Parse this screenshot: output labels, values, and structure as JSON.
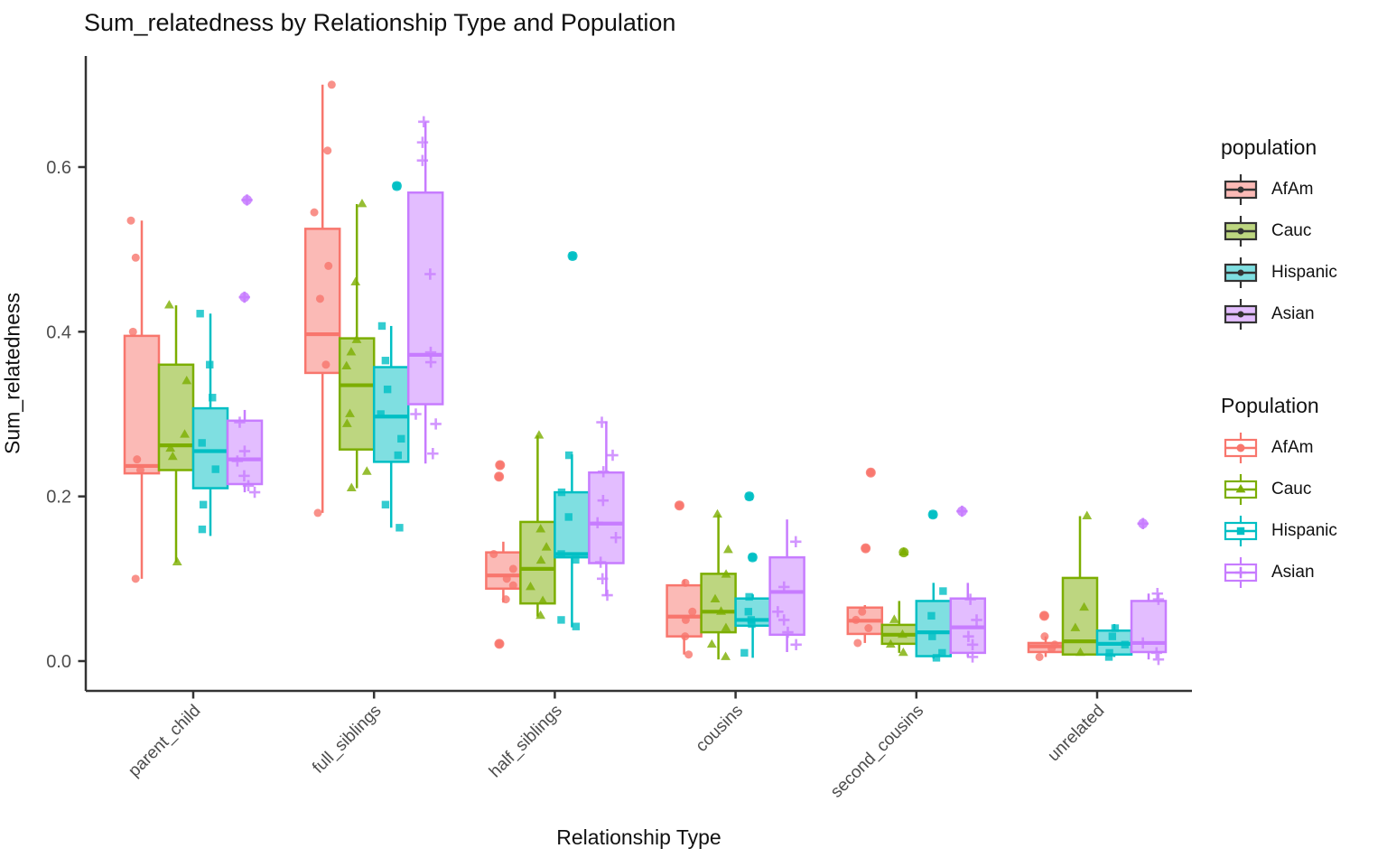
{
  "chart_data": {
    "type": "boxplot",
    "title": "Sum_relatedness by Relationship Type and Population",
    "xlabel": "Relationship Type",
    "ylabel": "Sum_relatedness",
    "ylim": [
      -0.035,
      0.73
    ],
    "yticks": [
      0.0,
      0.2,
      0.4,
      0.6
    ],
    "grid": false,
    "legend_position": "right",
    "categories": [
      "parent_child",
      "full_siblings",
      "half_siblings",
      "cousins",
      "second_cousins",
      "unrelated"
    ],
    "populations": [
      {
        "name": "AfAm",
        "color": "#F8766D",
        "fill": "#FBBAB6",
        "shape": "circle"
      },
      {
        "name": "Cauc",
        "color": "#7CAE00",
        "fill": "#BDD680",
        "shape": "triangle"
      },
      {
        "name": "Hispanic",
        "color": "#00BFC4",
        "fill": "#7FDFE1",
        "shape": "square"
      },
      {
        "name": "Asian",
        "color": "#C77CFF",
        "fill": "#E3BDFF",
        "shape": "plus"
      }
    ],
    "legends": [
      {
        "title": "population",
        "style": "filled",
        "items": [
          "AfAm",
          "Cauc",
          "Hispanic",
          "Asian"
        ]
      },
      {
        "title": "Population",
        "style": "outline",
        "items": [
          "AfAm",
          "Cauc",
          "Hispanic",
          "Asian"
        ]
      }
    ],
    "series": [
      {
        "category": "parent_child",
        "boxes": [
          {
            "pop": "AfAm",
            "whislo": 0.1,
            "q1": 0.228,
            "med": 0.237,
            "q3": 0.395,
            "whishi": 0.535,
            "outliers": [],
            "points": [
              0.535,
              0.49,
              0.4,
              0.245,
              0.232,
              0.1
            ]
          },
          {
            "pop": "Cauc",
            "whislo": 0.12,
            "q1": 0.232,
            "med": 0.262,
            "q3": 0.36,
            "whishi": 0.432,
            "outliers": [],
            "points": [
              0.432,
              0.34,
              0.275,
              0.258,
              0.248,
              0.12
            ]
          },
          {
            "pop": "Hispanic",
            "whislo": 0.152,
            "q1": 0.21,
            "med": 0.255,
            "q3": 0.307,
            "whishi": 0.422,
            "outliers": [],
            "points": [
              0.422,
              0.36,
              0.32,
              0.265,
              0.233,
              0.19,
              0.16
            ]
          },
          {
            "pop": "Asian",
            "whislo": 0.205,
            "q1": 0.215,
            "med": 0.245,
            "q3": 0.292,
            "whishi": 0.305,
            "outliers": [
              0.56,
              0.442
            ],
            "points": [
              0.29,
              0.255,
              0.243,
              0.225,
              0.213,
              0.205
            ]
          }
        ]
      },
      {
        "category": "full_siblings",
        "boxes": [
          {
            "pop": "AfAm",
            "whislo": 0.18,
            "q1": 0.35,
            "med": 0.397,
            "q3": 0.525,
            "whishi": 0.7,
            "outliers": [],
            "points": [
              0.7,
              0.62,
              0.545,
              0.48,
              0.44,
              0.36,
              0.18
            ]
          },
          {
            "pop": "Cauc",
            "whislo": 0.21,
            "q1": 0.257,
            "med": 0.335,
            "q3": 0.392,
            "whishi": 0.555,
            "outliers": [],
            "points": [
              0.555,
              0.46,
              0.39,
              0.375,
              0.358,
              0.3,
              0.288,
              0.23,
              0.21
            ]
          },
          {
            "pop": "Hispanic",
            "whislo": 0.162,
            "q1": 0.242,
            "med": 0.297,
            "q3": 0.357,
            "whishi": 0.407,
            "outliers": [
              0.577
            ],
            "points": [
              0.407,
              0.365,
              0.33,
              0.3,
              0.27,
              0.25,
              0.19,
              0.162
            ]
          },
          {
            "pop": "Asian",
            "whislo": 0.24,
            "q1": 0.312,
            "med": 0.372,
            "q3": 0.569,
            "whishi": 0.655,
            "outliers": [],
            "points": [
              0.655,
              0.63,
              0.608,
              0.47,
              0.375,
              0.363,
              0.3,
              0.288,
              0.252
            ]
          }
        ]
      },
      {
        "category": "half_siblings",
        "boxes": [
          {
            "pop": "AfAm",
            "whislo": 0.071,
            "q1": 0.088,
            "med": 0.104,
            "q3": 0.132,
            "whishi": 0.145,
            "outliers": [
              0.238,
              0.224,
              0.021
            ],
            "points": [
              0.13,
              0.112,
              0.1,
              0.092,
              0.075
            ]
          },
          {
            "pop": "Cauc",
            "whislo": 0.054,
            "q1": 0.07,
            "med": 0.112,
            "q3": 0.169,
            "whishi": 0.274,
            "outliers": [],
            "points": [
              0.274,
              0.16,
              0.138,
              0.122,
              0.09,
              0.073,
              0.055
            ]
          },
          {
            "pop": "Hispanic",
            "whislo": 0.041,
            "q1": 0.126,
            "med": 0.13,
            "q3": 0.205,
            "whishi": 0.251,
            "outliers": [
              0.492
            ],
            "points": [
              0.25,
              0.205,
              0.175,
              0.13,
              0.123,
              0.05,
              0.042
            ]
          },
          {
            "pop": "Asian",
            "whislo": 0.079,
            "q1": 0.119,
            "med": 0.167,
            "q3": 0.229,
            "whishi": 0.291,
            "outliers": [],
            "points": [
              0.29,
              0.25,
              0.23,
              0.195,
              0.168,
              0.15,
              0.12,
              0.1,
              0.08
            ]
          }
        ]
      },
      {
        "category": "cousins",
        "boxes": [
          {
            "pop": "AfAm",
            "whislo": 0.008,
            "q1": 0.03,
            "med": 0.054,
            "q3": 0.092,
            "whishi": 0.099,
            "outliers": [
              0.189
            ],
            "points": [
              0.095,
              0.06,
              0.05,
              0.03,
              0.008
            ]
          },
          {
            "pop": "Cauc",
            "whislo": 0.002,
            "q1": 0.035,
            "med": 0.06,
            "q3": 0.106,
            "whishi": 0.178,
            "outliers": [],
            "points": [
              0.178,
              0.135,
              0.105,
              0.075,
              0.06,
              0.04,
              0.02,
              0.005
            ]
          },
          {
            "pop": "Hispanic",
            "whislo": 0.004,
            "q1": 0.043,
            "med": 0.05,
            "q3": 0.076,
            "whishi": 0.081,
            "outliers": [
              0.2,
              0.126
            ],
            "points": [
              0.078,
              0.06,
              0.05,
              0.045,
              0.01
            ]
          },
          {
            "pop": "Asian",
            "whislo": 0.011,
            "q1": 0.032,
            "med": 0.084,
            "q3": 0.126,
            "whishi": 0.172,
            "outliers": [],
            "points": [
              0.145,
              0.09,
              0.06,
              0.05,
              0.035,
              0.02
            ]
          }
        ]
      },
      {
        "category": "second_cousins",
        "boxes": [
          {
            "pop": "AfAm",
            "whislo": 0.022,
            "q1": 0.033,
            "med": 0.049,
            "q3": 0.065,
            "whishi": 0.068,
            "outliers": [
              0.229,
              0.137
            ],
            "points": [
              0.06,
              0.05,
              0.04,
              0.022
            ]
          },
          {
            "pop": "Cauc",
            "whislo": 0.01,
            "q1": 0.021,
            "med": 0.032,
            "q3": 0.044,
            "whishi": 0.073,
            "outliers": [
              0.132
            ],
            "points": [
              0.05,
              0.032,
              0.02,
              0.01
            ]
          },
          {
            "pop": "Hispanic",
            "whislo": 0.003,
            "q1": 0.006,
            "med": 0.035,
            "q3": 0.073,
            "whishi": 0.095,
            "outliers": [
              0.178
            ],
            "points": [
              0.085,
              0.055,
              0.03,
              0.01,
              0.004
            ]
          },
          {
            "pop": "Asian",
            "whislo": 0.005,
            "q1": 0.01,
            "med": 0.041,
            "q3": 0.076,
            "whishi": 0.095,
            "outliers": [
              0.182
            ],
            "points": [
              0.075,
              0.05,
              0.03,
              0.02,
              0.005
            ]
          }
        ]
      },
      {
        "category": "unrelated",
        "boxes": [
          {
            "pop": "AfAm",
            "whislo": 0.005,
            "q1": 0.011,
            "med": 0.018,
            "q3": 0.022,
            "whishi": 0.03,
            "outliers": [
              0.055
            ],
            "points": [
              0.03,
              0.02,
              0.015,
              0.005
            ]
          },
          {
            "pop": "Cauc",
            "whislo": 0.008,
            "q1": 0.008,
            "med": 0.024,
            "q3": 0.101,
            "whishi": 0.176,
            "outliers": [],
            "points": [
              0.176,
              0.065,
              0.04,
              0.01
            ]
          },
          {
            "pop": "Hispanic",
            "whislo": 0.005,
            "q1": 0.008,
            "med": 0.021,
            "q3": 0.037,
            "whishi": 0.045,
            "outliers": [],
            "points": [
              0.04,
              0.03,
              0.02,
              0.01,
              0.005
            ]
          },
          {
            "pop": "Asian",
            "whislo": 0.002,
            "q1": 0.011,
            "med": 0.022,
            "q3": 0.073,
            "whishi": 0.082,
            "outliers": [
              0.167
            ],
            "points": [
              0.082,
              0.075,
              0.022,
              0.01,
              0.002
            ]
          }
        ]
      }
    ]
  }
}
